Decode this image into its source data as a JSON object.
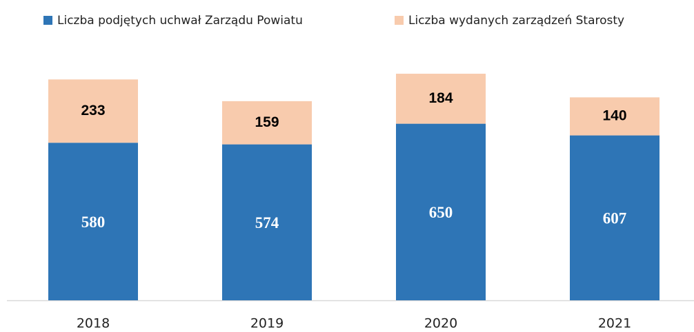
{
  "chart_data": {
    "type": "stacked_bar",
    "categories": [
      "2018",
      "2019",
      "2020",
      "2021"
    ],
    "series": [
      {
        "name": "Liczba podjętych uchwał Zarządu Powiatu",
        "color": "#2e75b6",
        "values": [
          580,
          574,
          650,
          607
        ]
      },
      {
        "name": "Liczba wydanych zarządzeń Starosty",
        "color": "#f8cbad",
        "values": [
          233,
          159,
          184,
          140
        ]
      }
    ],
    "ylim": [
      0,
      900
    ],
    "legend": "top"
  }
}
